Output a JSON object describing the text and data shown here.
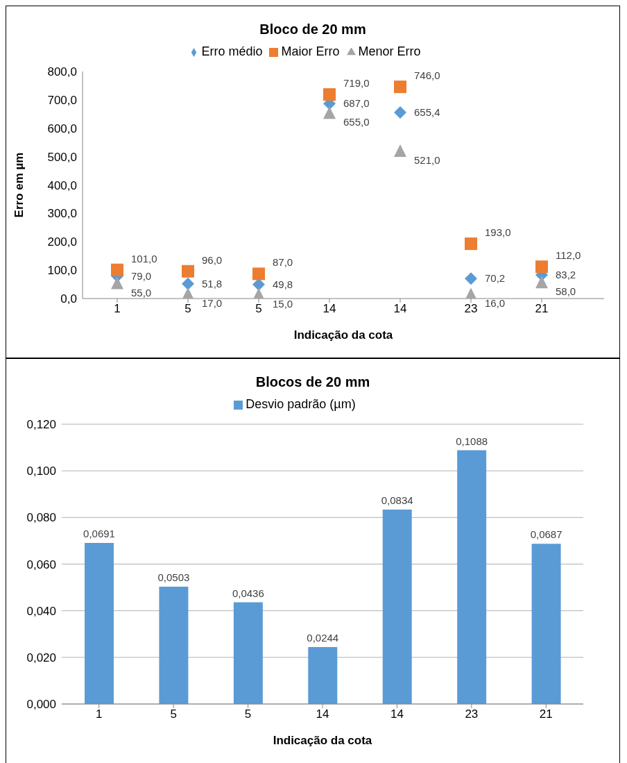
{
  "chart_data": [
    {
      "type": "scatter",
      "title": "Bloco de 20 mm",
      "xlabel": "Indicação da cota",
      "ylabel": "Erro em µm",
      "categories": [
        "1",
        "5",
        "5",
        "14",
        "14",
        "23",
        "21"
      ],
      "series": [
        {
          "name": "Erro médio",
          "color": "#5b9bd5",
          "marker": "diamond",
          "values": [
            79.0,
            51.8,
            49.8,
            687.0,
            655.4,
            70.2,
            83.2
          ],
          "value_labels": [
            "79,0",
            "51,8",
            "49,8",
            "687,0",
            "655,4",
            "70,2",
            "83,2"
          ]
        },
        {
          "name": "Maior Erro",
          "color": "#ed7d31",
          "marker": "square",
          "values": [
            101.0,
            96.0,
            87.0,
            719.0,
            746.0,
            193.0,
            112.0
          ],
          "value_labels": [
            "101,0",
            "96,0",
            "87,0",
            "719,0",
            "746,0",
            "193,0",
            "112,0"
          ]
        },
        {
          "name": "Menor Erro",
          "color": "#a5a5a5",
          "marker": "triangle",
          "values": [
            55.0,
            17.0,
            15.0,
            655.0,
            521.0,
            16.0,
            58.0
          ],
          "value_labels": [
            "55,0",
            "17,0",
            "15,0",
            "655,0",
            "521,0",
            "16,0",
            "58,0"
          ]
        }
      ],
      "ylim": [
        0,
        800
      ],
      "yticks": [
        {
          "value": 0,
          "label": "0,0"
        },
        {
          "value": 100,
          "label": "100,0"
        },
        {
          "value": 200,
          "label": "200,0"
        },
        {
          "value": 300,
          "label": "300,0"
        },
        {
          "value": 400,
          "label": "400,0"
        },
        {
          "value": 500,
          "label": "500,0"
        },
        {
          "value": 600,
          "label": "600,0"
        },
        {
          "value": 700,
          "label": "700,0"
        },
        {
          "value": 800,
          "label": "800,0"
        }
      ],
      "grid": false,
      "legend": "top"
    },
    {
      "type": "bar",
      "title": "Blocos de 20 mm",
      "xlabel": "Indicação da cota",
      "categories": [
        "1",
        "5",
        "5",
        "14",
        "14",
        "23",
        "21"
      ],
      "series": [
        {
          "name": "Desvio padrão (µm)",
          "color": "#5b9bd5",
          "values": [
            0.0691,
            0.0503,
            0.0436,
            0.0244,
            0.0834,
            0.1088,
            0.0687
          ],
          "value_labels": [
            "0,0691",
            "0,0503",
            "0,0436",
            "0,0244",
            "0,0834",
            "0,1088",
            "0,0687"
          ]
        }
      ],
      "ylim": [
        0,
        0.12
      ],
      "yticks": [
        {
          "value": 0,
          "label": "0,000"
        },
        {
          "value": 0.02,
          "label": "0,020"
        },
        {
          "value": 0.04,
          "label": "0,040"
        },
        {
          "value": 0.06,
          "label": "0,060"
        },
        {
          "value": 0.08,
          "label": "0,080"
        },
        {
          "value": 0.1,
          "label": "0,100"
        },
        {
          "value": 0.12,
          "label": "0,120"
        }
      ],
      "grid": "y",
      "legend": "top"
    }
  ]
}
